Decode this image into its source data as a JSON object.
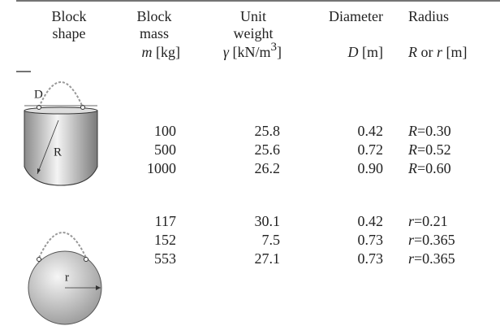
{
  "table": {
    "header": {
      "shape": [
        "Block",
        "shape"
      ],
      "mass": [
        "Block",
        "mass",
        "m",
        " [kg]"
      ],
      "weight": [
        "Unit",
        "weight",
        "γ",
        " [kN/m",
        "3",
        "]"
      ],
      "diameter": [
        "Diameter",
        "D",
        " [m]"
      ],
      "radius": [
        "Radius",
        "R",
        " or ",
        "r",
        " [m]"
      ]
    },
    "figures": {
      "cylinder": [
        "D",
        "R"
      ],
      "sphere": [
        "r"
      ]
    },
    "groups": [
      [
        [
          "100",
          "25.8",
          "0.42",
          "R",
          "=0.30"
        ],
        [
          "500",
          "25.6",
          "0.72",
          "R",
          "=0.52"
        ],
        [
          "1000",
          "26.2",
          "0.90",
          "R",
          "=0.60"
        ]
      ],
      [
        [
          "117",
          "30.1",
          "0.42",
          "r",
          "=0.21"
        ],
        [
          "152",
          "7.5",
          "0.73",
          "r",
          "=0.365"
        ],
        [
          "553",
          "27.1",
          "0.73",
          "r",
          "=0.365"
        ]
      ]
    ]
  }
}
